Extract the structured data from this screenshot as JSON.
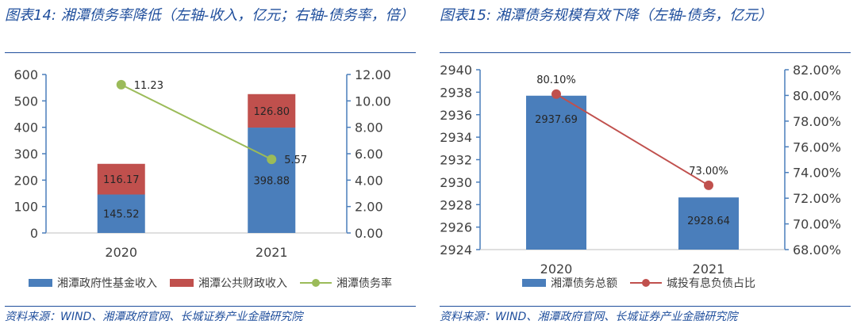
{
  "charts": [
    {
      "figure_title": "图表14:  湘潭债务率降低（左轴-收入，亿元；右轴-债务率，倍）",
      "source": "资料来源：WIND、湘潭政府官网、长城证券产业金融研究院",
      "chart_data": {
        "type": "bar",
        "stacked": true,
        "categories": [
          "2020",
          "2021"
        ],
        "series": [
          {
            "name": "湘潭政府性基金收入",
            "type": "bar",
            "axis": "left",
            "values": [
              145.52,
              398.88
            ],
            "labels": [
              "145.52",
              "398.88"
            ],
            "color": "#4a7ebb"
          },
          {
            "name": "湘潭公共财政收入",
            "type": "bar",
            "axis": "left",
            "values": [
              116.17,
              126.8
            ],
            "labels": [
              "116.17",
              "126.80"
            ],
            "color": "#c0504d"
          },
          {
            "name": "湘潭债务率",
            "type": "line",
            "axis": "right",
            "values": [
              11.23,
              5.57
            ],
            "labels": [
              "11.23",
              "5.57"
            ],
            "color": "#9bbb59"
          }
        ],
        "left_axis": {
          "range": [
            0,
            600
          ],
          "ticks": [
            "0",
            "100",
            "200",
            "300",
            "400",
            "500",
            "600"
          ]
        },
        "right_axis": {
          "range": [
            0,
            12
          ],
          "ticks": [
            "0.00",
            "2.00",
            "4.00",
            "6.00",
            "8.00",
            "10.00",
            "12.00"
          ]
        },
        "grid": false,
        "legend_position": "bottom"
      }
    },
    {
      "figure_title": "图表15:  湘潭债务规模有效下降（左轴-债务，亿元）",
      "source": "资料来源：WIND、湘潭政府官网、长城证券产业金融研究院",
      "chart_data": {
        "type": "bar",
        "stacked": false,
        "categories": [
          "2020",
          "2021"
        ],
        "series": [
          {
            "name": "湘潭债务总额",
            "type": "bar",
            "axis": "left",
            "values": [
              2937.69,
              2928.64
            ],
            "labels": [
              "2937.69",
              "2928.64"
            ],
            "color": "#4a7ebb"
          },
          {
            "name": "城投有息负债占比",
            "type": "line",
            "axis": "right",
            "values": [
              80.1,
              73.0
            ],
            "labels": [
              "80.10%",
              "73.00%"
            ],
            "color": "#c0504d"
          }
        ],
        "left_axis": {
          "range": [
            2924,
            2940
          ],
          "ticks": [
            "2924",
            "2926",
            "2928",
            "2930",
            "2932",
            "2934",
            "2936",
            "2938",
            "2940"
          ]
        },
        "right_axis": {
          "range": [
            68,
            82
          ],
          "ticks": [
            "68.00%",
            "70.00%",
            "72.00%",
            "74.00%",
            "76.00%",
            "78.00%",
            "80.00%",
            "82.00%"
          ]
        },
        "grid": false,
        "legend_position": "bottom"
      }
    }
  ]
}
